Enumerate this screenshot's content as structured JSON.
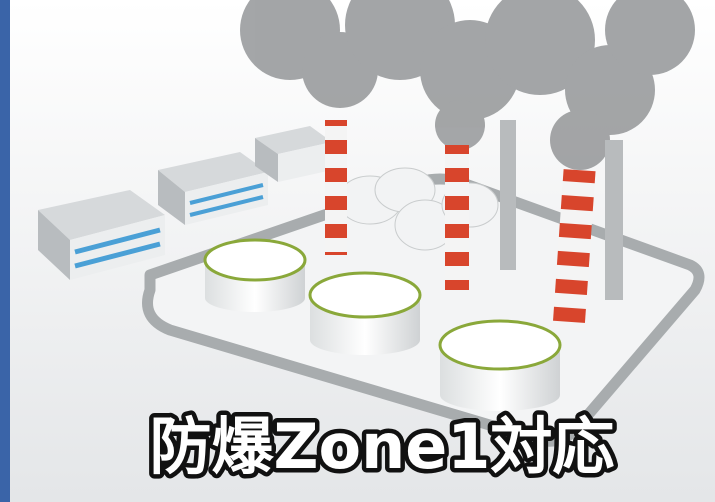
{
  "caption": "防爆Zone1対応"
}
